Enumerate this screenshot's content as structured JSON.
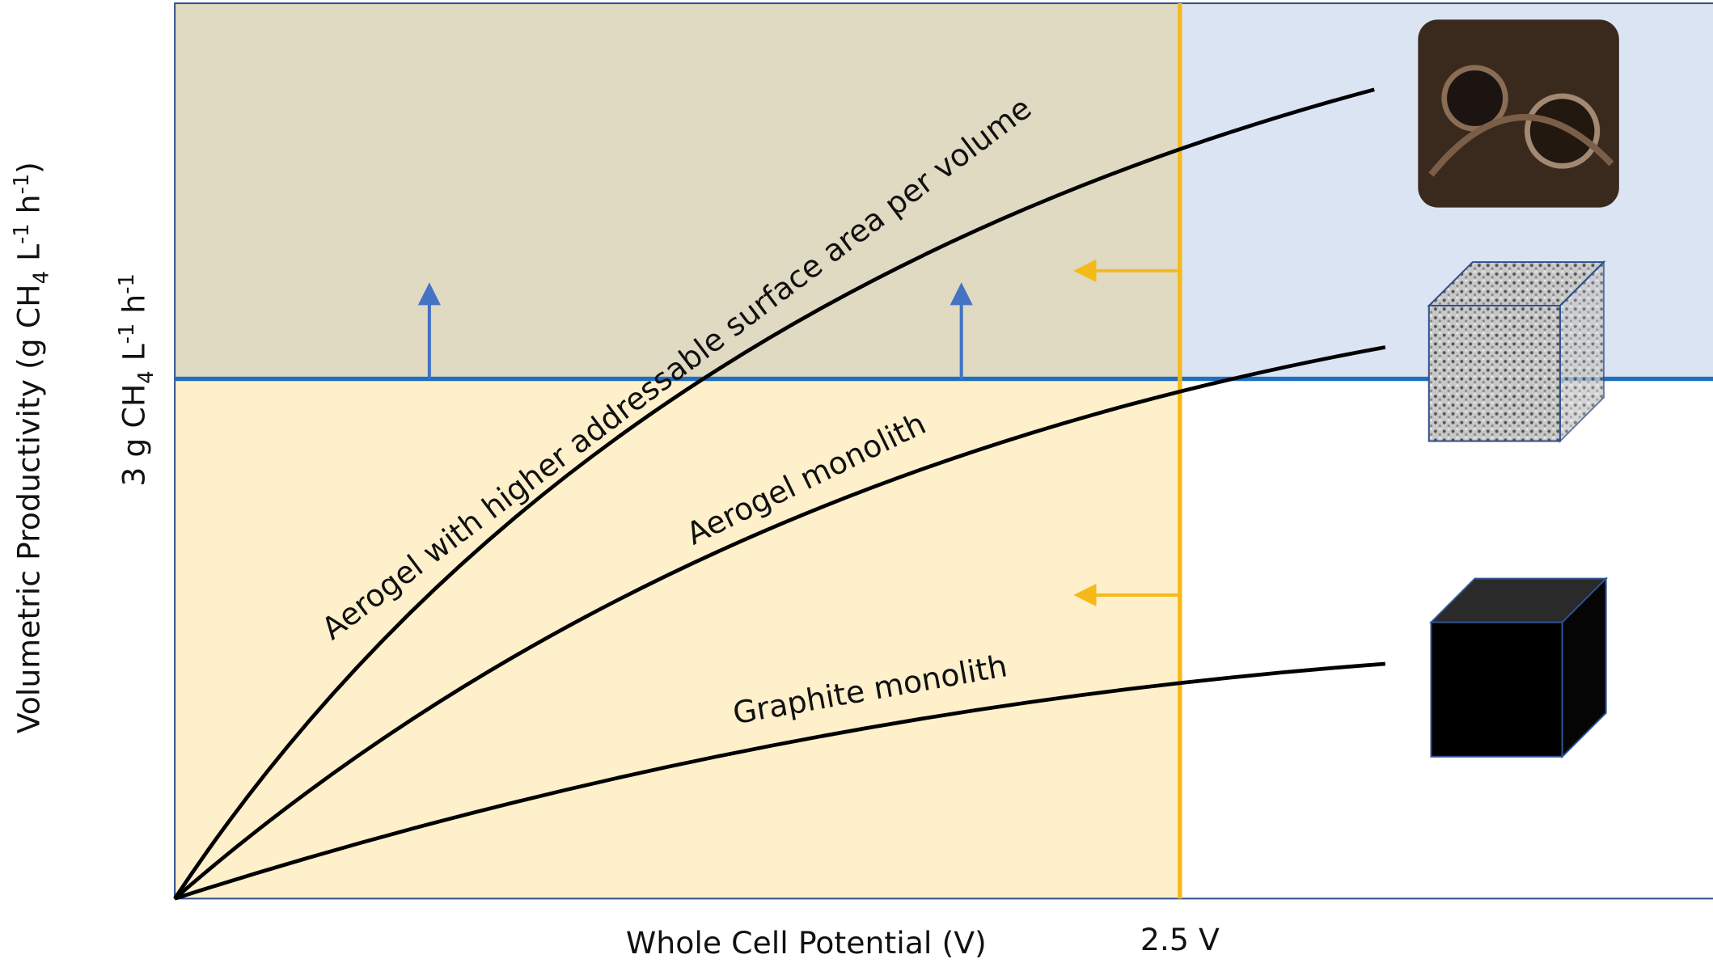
{
  "y_axis_label": {
    "parts": [
      "Volumetric Productivity (g CH",
      "4",
      " L",
      "-1",
      " h",
      "-1",
      ")"
    ]
  },
  "threshold_label": {
    "parts": [
      "3 g CH",
      "4",
      " L",
      "-1",
      " h",
      "-1"
    ]
  },
  "x_axis_label": "Whole Cell Potential (V)",
  "voltage_label": "2.5 V",
  "curves": [
    {
      "label": "Aerogel with higher addressable surface area per volume"
    },
    {
      "label": "Aerogel monolith"
    },
    {
      "label": "Graphite monolith"
    }
  ]
}
